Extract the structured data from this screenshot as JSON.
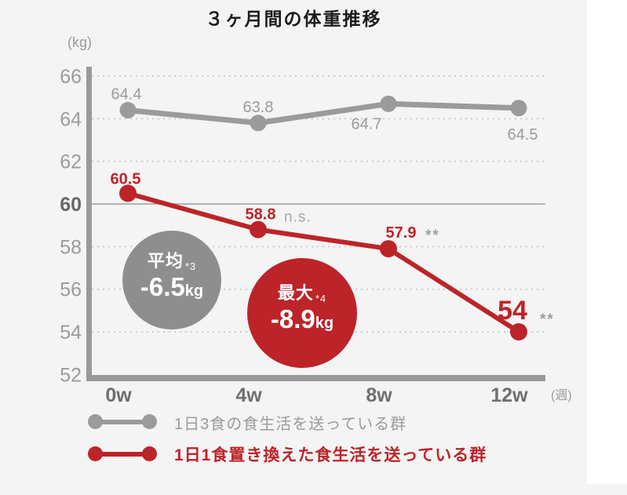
{
  "chart_data": {
    "type": "line",
    "title": "３ヶ月間の体重推移",
    "y_axis_unit": "(kg)",
    "x_axis_unit": "(週)",
    "x_categories": [
      "0w",
      "4w",
      "8w",
      "12w"
    ],
    "ylim": [
      52,
      66
    ],
    "yticks": [
      {
        "v": 66,
        "grid": "dotted"
      },
      {
        "v": 64,
        "grid": "dotted"
      },
      {
        "v": 62,
        "grid": "dotted"
      },
      {
        "v": 60,
        "grid": "solid",
        "bold": true
      },
      {
        "v": 58,
        "grid": "dotted"
      },
      {
        "v": 56,
        "grid": "dotted"
      },
      {
        "v": 54,
        "grid": "dotted"
      },
      {
        "v": 52,
        "grid": "none"
      }
    ],
    "grid": "horizontal",
    "legend_position": "bottom",
    "series": [
      {
        "id": "three-meals",
        "name": "1日3食の食生活を送っている群",
        "color": "#9b9b9b",
        "values": [
          64.4,
          63.8,
          64.7,
          64.5
        ],
        "point_labels": [
          "64.4",
          "63.8",
          "64.7",
          "64.5"
        ],
        "significance": [
          "",
          "",
          "",
          ""
        ]
      },
      {
        "id": "one-meal-replaced",
        "name": "1日1食置き換えた食生活を送っている群",
        "color": "#bc2429",
        "values": [
          60.5,
          58.8,
          57.9,
          54
        ],
        "point_labels": [
          "60.5",
          "58.8",
          "57.9",
          "54"
        ],
        "significance": [
          "",
          "n.s.",
          "**",
          "**"
        ]
      }
    ],
    "callouts": [
      {
        "title": "平均",
        "footnote": "*3",
        "value": "-6.5",
        "unit": "kg",
        "color": "#8e8e8e"
      },
      {
        "title": "最大",
        "footnote": "*4",
        "value": "-8.9",
        "unit": "kg",
        "color": "#bc2429"
      }
    ]
  }
}
